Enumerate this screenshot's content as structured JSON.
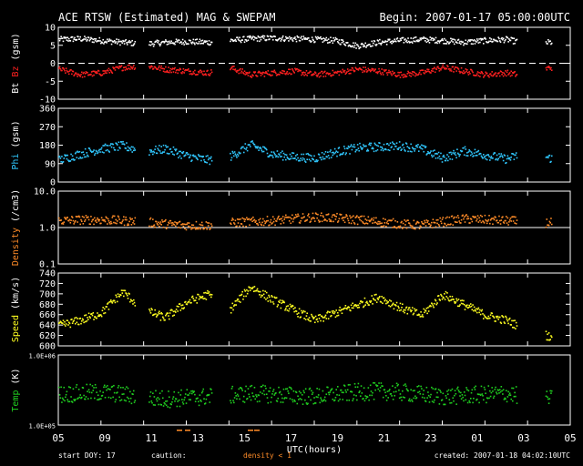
{
  "header": {
    "title": "ACE RTSW (Estimated) MAG & SWEPAM",
    "begin": "Begin: 2007-01-17 05:00:00UTC"
  },
  "colors": {
    "bt": "#ffffff",
    "bz": "#ff2020",
    "phi": "#30c8ff",
    "density": "#ff8c28",
    "speed": "#ffff20",
    "temp": "#20d020",
    "axis": "#ffffff",
    "background": "#000000"
  },
  "footer": {
    "start_doy_label": "start DOY:",
    "start_doy": "17",
    "caution_label": "caution:",
    "density_note": "density < 1",
    "created": "created: 2007-01-18 04:02:10UTC"
  },
  "chart_data": {
    "type": "scatter",
    "xlabel": "UTC(hours)",
    "x_tick_labels": [
      "05",
      "09",
      "11",
      "13",
      "15",
      "17",
      "19",
      "21",
      "23",
      "01",
      "03",
      "05"
    ],
    "x_range_hours": [
      0,
      24
    ],
    "data_end_hour": 23.1,
    "gaps_hours": [
      [
        3.6,
        4.2
      ],
      [
        7.2,
        8.0
      ],
      [
        21.5,
        22.8
      ]
    ],
    "panels": [
      {
        "id": "mag",
        "ylabel": [
          "Bt",
          "Bz",
          "(gsm)"
        ],
        "ylim": [
          -10,
          10
        ],
        "yticks": [
          "10",
          "5",
          "0",
          "-5",
          "-10"
        ],
        "ytick_values": [
          10,
          5,
          0,
          -5,
          -10
        ],
        "zero_line": true,
        "series": [
          {
            "name": "Bt",
            "x": [
              0,
              1,
              2,
              3,
              4,
              5,
              6,
              7,
              8,
              9,
              10,
              11,
              12,
              13,
              14,
              15,
              16,
              17,
              18,
              19,
              20,
              21,
              22,
              23
            ],
            "y": [
              6.8,
              7.0,
              6.5,
              6.0,
              5.5,
              6.0,
              6.2,
              6.0,
              6.5,
              7.0,
              7.2,
              7.0,
              6.8,
              6.5,
              5.0,
              6.0,
              6.5,
              6.8,
              6.5,
              6.0,
              6.5,
              6.8,
              5.5,
              6.0
            ]
          },
          {
            "name": "Bz",
            "x": [
              0,
              1,
              2,
              3,
              4,
              5,
              6,
              7,
              8,
              9,
              10,
              11,
              12,
              13,
              14,
              15,
              16,
              17,
              18,
              19,
              20,
              21,
              22,
              23
            ],
            "y": [
              -1.5,
              -3.0,
              -2.5,
              -1.0,
              -0.5,
              -1.5,
              -2.0,
              -2.5,
              -1.0,
              -3.0,
              -2.5,
              -2.0,
              -3.0,
              -2.5,
              -1.5,
              -2.0,
              -3.0,
              -2.5,
              -1.0,
              -2.0,
              -3.0,
              -2.5,
              -3.5,
              -1.0
            ]
          }
        ]
      },
      {
        "id": "phi",
        "ylabel": [
          "Phi",
          "(gsm)"
        ],
        "ylim": [
          0,
          360
        ],
        "yticks": [
          "360",
          "270",
          "180",
          "90",
          "0"
        ],
        "ytick_values": [
          360,
          270,
          180,
          90,
          0
        ],
        "series": [
          {
            "name": "Phi",
            "x": [
              0,
              1,
              2,
              3,
              4,
              5,
              6,
              7,
              8,
              9,
              10,
              11,
              12,
              13,
              14,
              15,
              16,
              17,
              18,
              19,
              20,
              21,
              22,
              23
            ],
            "y": [
              110,
              140,
              165,
              180,
              150,
              165,
              130,
              110,
              125,
              185,
              140,
              125,
              120,
              150,
              170,
              175,
              180,
              165,
              120,
              155,
              135,
              115,
              150,
              120
            ]
          }
        ]
      },
      {
        "id": "density",
        "ylabel": [
          "Density",
          "(/cm3)"
        ],
        "log": true,
        "ylim": [
          0.1,
          10
        ],
        "yticks": [
          "10.0",
          "1.0",
          "0.1"
        ],
        "ytick_values": [
          10,
          1,
          0.1
        ],
        "reference_line": 1.0,
        "series": [
          {
            "name": "Density",
            "x": [
              0,
              1,
              2,
              3,
              4,
              5,
              6,
              7,
              8,
              9,
              10,
              11,
              12,
              13,
              14,
              15,
              16,
              17,
              18,
              19,
              20,
              21,
              22,
              23
            ],
            "y": [
              1.6,
              1.7,
              1.7,
              1.6,
              1.5,
              1.3,
              1.2,
              1.2,
              1.4,
              1.5,
              1.6,
              1.8,
              2.0,
              1.9,
              1.7,
              1.5,
              1.3,
              1.2,
              1.5,
              1.8,
              1.7,
              1.6,
              1.5,
              1.4
            ]
          }
        ]
      },
      {
        "id": "speed",
        "ylabel": [
          "Speed",
          "(km/s)"
        ],
        "ylim": [
          600,
          740
        ],
        "yticks": [
          "740",
          "720",
          "700",
          "680",
          "660",
          "640",
          "620",
          "600"
        ],
        "ytick_values": [
          740,
          720,
          700,
          680,
          660,
          640,
          620,
          600
        ],
        "series": [
          {
            "name": "Speed",
            "x": [
              0,
              1,
              2,
              3,
              4,
              5,
              6,
              7,
              8,
              9,
              10,
              11,
              12,
              13,
              14,
              15,
              16,
              17,
              18,
              19,
              20,
              21,
              22,
              23
            ],
            "y": [
              640,
              650,
              665,
              705,
              670,
              655,
              685,
              700,
              670,
              715,
              690,
              670,
              650,
              665,
              680,
              695,
              675,
              660,
              700,
              680,
              660,
              650,
              630,
              620
            ]
          }
        ]
      },
      {
        "id": "temp",
        "ylabel": [
          "Temp",
          "(K)"
        ],
        "log": true,
        "ylim": [
          100000,
          1000000
        ],
        "yticks": [
          "1.0E+06",
          "1.0E+05"
        ],
        "ytick_values": [
          1000000,
          100000
        ],
        "series": [
          {
            "name": "Temp",
            "x": [
              0,
              1,
              2,
              3,
              4,
              5,
              6,
              7,
              8,
              9,
              10,
              11,
              12,
              13,
              14,
              15,
              16,
              17,
              18,
              19,
              20,
              21,
              22,
              23
            ],
            "y": [
              280000,
              290000,
              300000,
              280000,
              250000,
              240000,
              250000,
              260000,
              270000,
              290000,
              280000,
              270000,
              260000,
              280000,
              300000,
              310000,
              300000,
              280000,
              260000,
              270000,
              280000,
              290000,
              250000,
              240000
            ]
          }
        ]
      }
    ]
  }
}
